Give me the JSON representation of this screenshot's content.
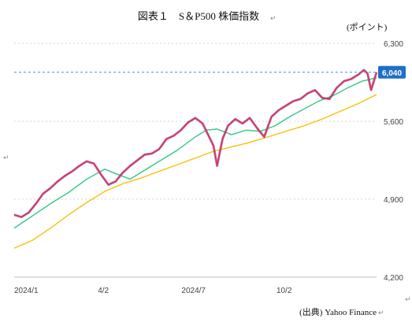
{
  "chart_data": {
    "type": "line",
    "title": "図表１　S＆P500 株価指数",
    "unit_label": "(ポイント)",
    "source": "(出典) Yahoo Finance",
    "return_mark": "↵",
    "y_ticks": [
      "6,300",
      "5,600",
      "4,900",
      "4,200"
    ],
    "ylim": [
      4200,
      6300
    ],
    "x_ticks": [
      {
        "label": "2024/1",
        "t": 0.0
      },
      {
        "label": "4/2",
        "t": 0.246
      },
      {
        "label": "2024/7",
        "t": 0.495
      },
      {
        "label": "10/2",
        "t": 0.745
      }
    ],
    "last_value_label": "6,040",
    "last_value": 6040,
    "grid": true,
    "colors": {
      "price": "#e0325a",
      "price_shadow": "#5a3a9a",
      "ma_short": "#42c98a",
      "ma_long": "#f5c518",
      "last_line": "#3a8ee6",
      "last_box": "#1f6fc9"
    },
    "series": [
      {
        "role": "price",
        "x": [
          0,
          0.02,
          0.04,
          0.06,
          0.08,
          0.1,
          0.12,
          0.14,
          0.16,
          0.18,
          0.2,
          0.22,
          0.24,
          0.26,
          0.28,
          0.3,
          0.32,
          0.34,
          0.36,
          0.38,
          0.4,
          0.42,
          0.44,
          0.46,
          0.48,
          0.5,
          0.52,
          0.535,
          0.55,
          0.56,
          0.575,
          0.59,
          0.61,
          0.63,
          0.65,
          0.67,
          0.69,
          0.71,
          0.73,
          0.75,
          0.77,
          0.79,
          0.81,
          0.83,
          0.85,
          0.87,
          0.89,
          0.91,
          0.93,
          0.95,
          0.965,
          0.975,
          0.985,
          1.0
        ],
        "values": [
          4760,
          4740,
          4780,
          4860,
          4950,
          5000,
          5060,
          5110,
          5150,
          5200,
          5240,
          5220,
          5120,
          5030,
          5060,
          5140,
          5200,
          5250,
          5300,
          5310,
          5350,
          5440,
          5470,
          5520,
          5590,
          5630,
          5580,
          5480,
          5380,
          5200,
          5440,
          5560,
          5620,
          5580,
          5630,
          5540,
          5460,
          5640,
          5700,
          5740,
          5780,
          5800,
          5850,
          5880,
          5810,
          5800,
          5900,
          5960,
          5980,
          6020,
          6060,
          6030,
          5880,
          6040
        ]
      },
      {
        "role": "ma_short",
        "x": [
          0,
          0.05,
          0.1,
          0.15,
          0.2,
          0.25,
          0.28,
          0.32,
          0.36,
          0.4,
          0.45,
          0.5,
          0.53,
          0.56,
          0.6,
          0.64,
          0.68,
          0.72,
          0.76,
          0.8,
          0.84,
          0.88,
          0.92,
          0.96,
          1.0
        ],
        "values": [
          4640,
          4750,
          4860,
          4960,
          5080,
          5170,
          5130,
          5080,
          5160,
          5240,
          5340,
          5460,
          5520,
          5530,
          5480,
          5520,
          5510,
          5560,
          5640,
          5710,
          5780,
          5830,
          5900,
          5960,
          5990
        ]
      },
      {
        "role": "ma_long",
        "x": [
          0,
          0.05,
          0.1,
          0.15,
          0.2,
          0.25,
          0.3,
          0.35,
          0.4,
          0.45,
          0.5,
          0.55,
          0.6,
          0.65,
          0.7,
          0.75,
          0.8,
          0.85,
          0.9,
          0.95,
          1.0
        ],
        "values": [
          4460,
          4530,
          4640,
          4760,
          4870,
          4970,
          5040,
          5090,
          5150,
          5210,
          5270,
          5330,
          5370,
          5410,
          5460,
          5510,
          5560,
          5620,
          5690,
          5760,
          5840
        ]
      }
    ]
  }
}
